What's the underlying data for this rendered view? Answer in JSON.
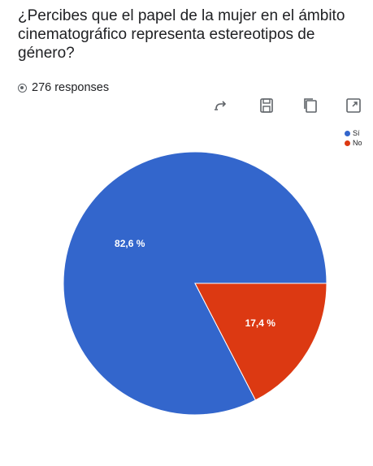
{
  "header": {
    "title": "¿Percibes que el papel de la mujer en el ámbito cinematográfico representa estereotipos de género?",
    "responses": "276 responses"
  },
  "toolbar": {
    "icons": [
      "swap-icon",
      "save-icon",
      "copy-icon",
      "expand-icon"
    ]
  },
  "chart_data": {
    "type": "pie",
    "categories": [
      "Sí",
      "No"
    ],
    "values": [
      82.6,
      17.4
    ],
    "labels": [
      "82,6 %",
      "17,4 %"
    ],
    "colors": [
      "#3366cc",
      "#dc3912"
    ],
    "legend_position": "top-right",
    "legend": [
      "Sí",
      "No"
    ]
  }
}
